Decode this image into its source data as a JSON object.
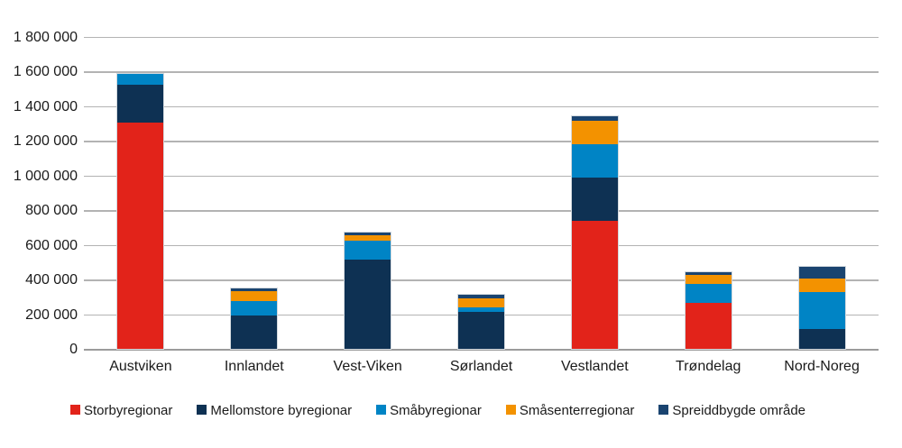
{
  "chart_data": {
    "type": "bar",
    "stacked": true,
    "title": "",
    "xlabel": "",
    "ylabel": "",
    "categories": [
      "Austviken",
      "Innlandet",
      "Vest-Viken",
      "Sørlandet",
      "Vestlandet",
      "Trøndelag",
      "Nord-Noreg"
    ],
    "series": [
      {
        "name": "Storbyregionar",
        "color": "#e2231a",
        "values": [
          1310000,
          0,
          0,
          0,
          745000,
          270000,
          0
        ]
      },
      {
        "name": "Mellomstore byregionar",
        "color": "#0e3153",
        "values": [
          218000,
          200000,
          520000,
          216000,
          250000,
          0,
          120000
        ]
      },
      {
        "name": "Småbyregionar",
        "color": "#0084c5",
        "values": [
          65000,
          80000,
          110000,
          28000,
          190000,
          110000,
          215000
        ]
      },
      {
        "name": "Småsenterregionar",
        "color": "#f39200",
        "values": [
          0,
          58000,
          30000,
          52000,
          135000,
          52000,
          75000
        ]
      },
      {
        "name": "Spreiddbygde område",
        "color": "#1a4470",
        "values": [
          0,
          18000,
          18000,
          19000,
          27000,
          17000,
          70000
        ]
      }
    ],
    "totals": [
      1593000,
      356000,
      678000,
      315000,
      1347000,
      449000,
      480000
    ],
    "ylim": [
      0,
      1800000
    ],
    "ytick_step": 200000,
    "ytick_labels": [
      "0",
      "200 000",
      "400 000",
      "600 000",
      "800 000",
      "1 000 000",
      "1 200 000",
      "1 400 000",
      "1 600 000",
      "1 800 000"
    ],
    "grid": true,
    "legend_position": "bottom"
  }
}
